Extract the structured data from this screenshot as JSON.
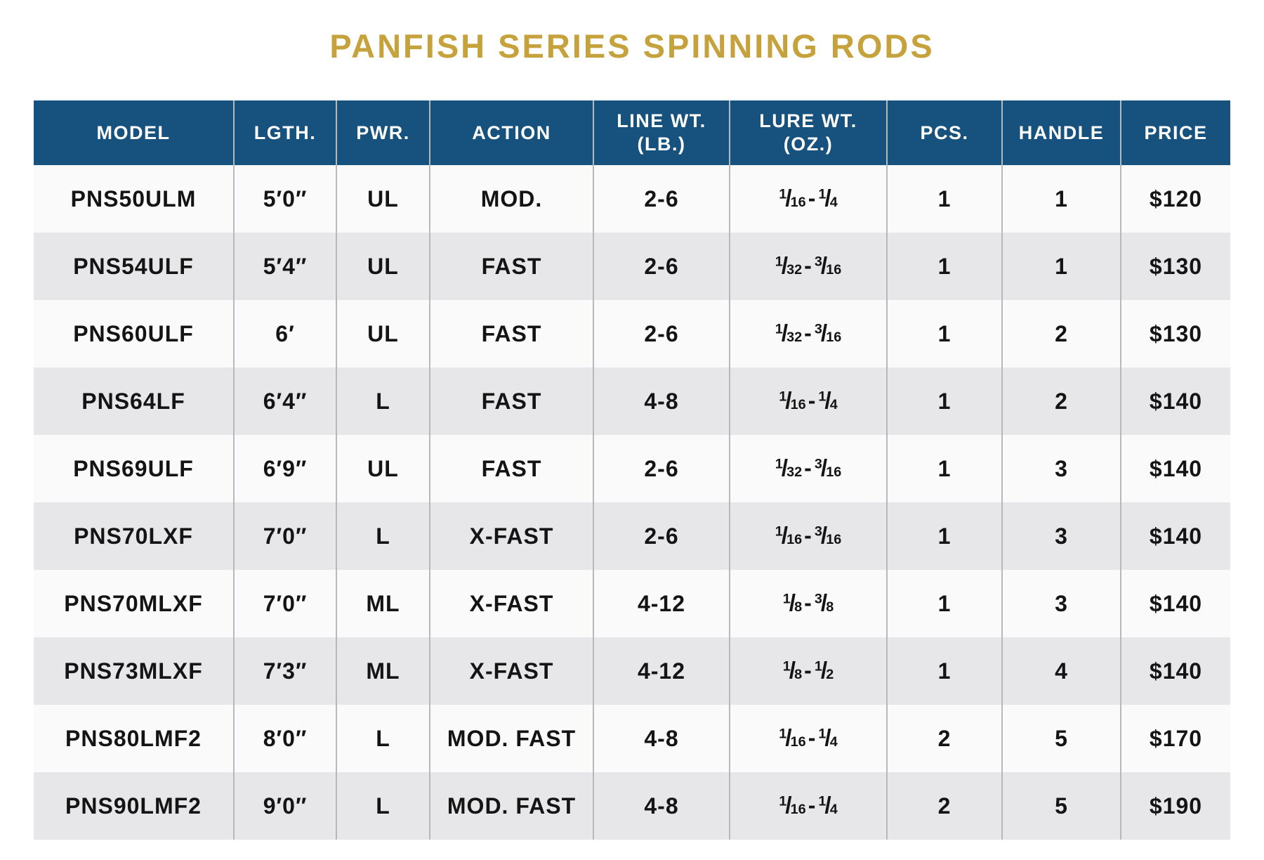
{
  "page_title": "PANFISH SERIES SPINNING RODS",
  "colors": {
    "title_gold": "#C6A23C",
    "header_bg": "#17527E",
    "header_text": "#FFFFFF",
    "row_odd": "#FAFAFA",
    "row_even": "#E7E7E9",
    "divider": "#B5B8BD",
    "body_text": "#141414"
  },
  "chart_data": {
    "type": "table",
    "title": "PANFISH SERIES SPINNING RODS",
    "columns": [
      {
        "id": "model",
        "label": "MODEL"
      },
      {
        "id": "lgth",
        "label": "LGTH."
      },
      {
        "id": "pwr",
        "label": "PWR."
      },
      {
        "id": "action",
        "label": "ACTION"
      },
      {
        "id": "line-wt",
        "label": "LINE WT.",
        "sub": "(LB.)"
      },
      {
        "id": "lure-wt",
        "label": "LURE WT.",
        "sub": "(OZ.)"
      },
      {
        "id": "pcs",
        "label": "PCS."
      },
      {
        "id": "handle",
        "label": "HANDLE"
      },
      {
        "id": "price",
        "label": "PRICE"
      }
    ],
    "fraction_column": 5,
    "rows": [
      [
        "PNS50ULM",
        "5′0″",
        "UL",
        "MOD.",
        "2-6",
        "1/16-1/4",
        "1",
        "1",
        "$120"
      ],
      [
        "PNS54ULF",
        "5′4″",
        "UL",
        "FAST",
        "2-6",
        "1/32-3/16",
        "1",
        "1",
        "$130"
      ],
      [
        "PNS60ULF",
        "6′",
        "UL",
        "FAST",
        "2-6",
        "1/32-3/16",
        "1",
        "2",
        "$130"
      ],
      [
        "PNS64LF",
        "6′4″",
        "L",
        "FAST",
        "4-8",
        "1/16-1/4",
        "1",
        "2",
        "$140"
      ],
      [
        "PNS69ULF",
        "6′9″",
        "UL",
        "FAST",
        "2-6",
        "1/32-3/16",
        "1",
        "3",
        "$140"
      ],
      [
        "PNS70LXF",
        "7′0″",
        "L",
        "X-FAST",
        "2-6",
        "1/16-3/16",
        "1",
        "3",
        "$140"
      ],
      [
        "PNS70MLXF",
        "7′0″",
        "ML",
        "X-FAST",
        "4-12",
        "1/8-3/8",
        "1",
        "3",
        "$140"
      ],
      [
        "PNS73MLXF",
        "7′3″",
        "ML",
        "X-FAST",
        "4-12",
        "1/8-1/2",
        "1",
        "4",
        "$140"
      ],
      [
        "PNS80LMF2",
        "8′0″",
        "L",
        "MOD. FAST",
        "4-8",
        "1/16-1/4",
        "2",
        "5",
        "$170"
      ],
      [
        "PNS90LMF2",
        "9′0″",
        "L",
        "MOD. FAST",
        "4-8",
        "1/16-1/4",
        "2",
        "5",
        "$190"
      ]
    ]
  }
}
